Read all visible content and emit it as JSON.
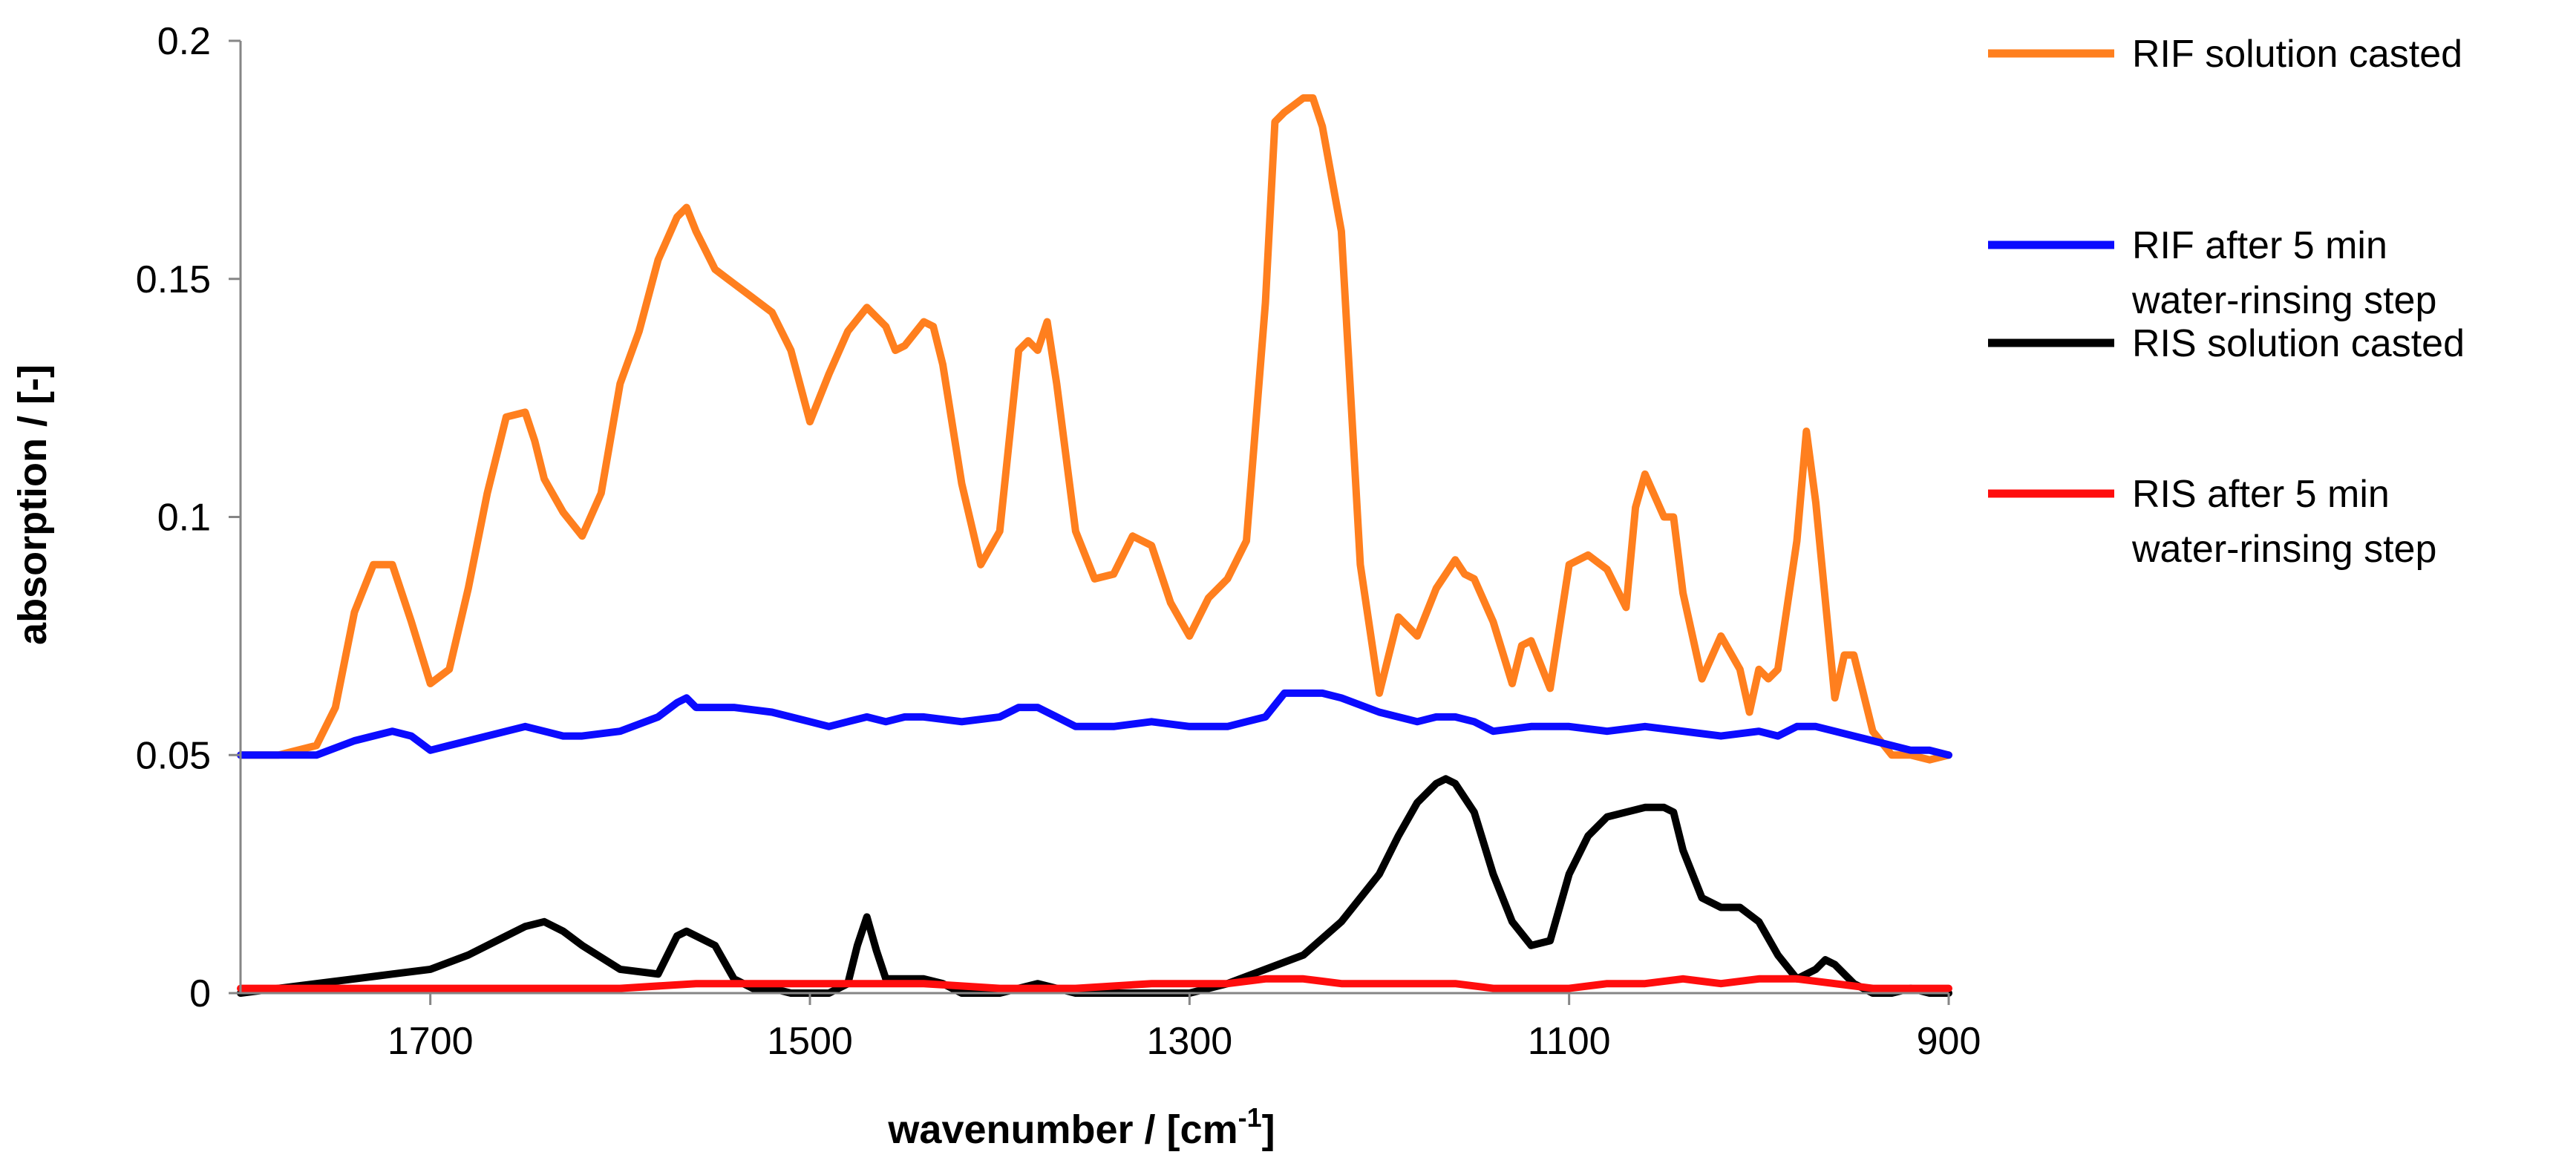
{
  "chart_data": {
    "type": "line",
    "title": "",
    "xlabel": "wavenumber / [cm",
    "xlabel_sup": "-1",
    "xlabel_end": "]",
    "ylabel": "absorption / [-]",
    "xlim": [
      1800,
      900
    ],
    "ylim": [
      0,
      0.2
    ],
    "x_ticks": [
      1700,
      1500,
      1300,
      1100,
      900
    ],
    "x_tick_labels": [
      "1700",
      "1500",
      "1300",
      "1100",
      "900"
    ],
    "y_ticks": [
      0,
      0.05,
      0.1,
      0.15,
      0.2
    ],
    "y_tick_labels": [
      "0",
      "0.05",
      "0.1",
      "0.15",
      "0.2"
    ],
    "grid": false,
    "legend_position": "right",
    "series": [
      {
        "name": "RIF solution casted",
        "legend_lines": [
          "RIF solution casted"
        ],
        "color": "#ff7f1e",
        "x": [
          1800,
          1780,
          1760,
          1750,
          1740,
          1730,
          1720,
          1710,
          1700,
          1690,
          1680,
          1670,
          1660,
          1650,
          1645,
          1640,
          1630,
          1620,
          1610,
          1600,
          1590,
          1580,
          1570,
          1565,
          1560,
          1550,
          1540,
          1530,
          1520,
          1510,
          1500,
          1490,
          1480,
          1470,
          1460,
          1455,
          1450,
          1440,
          1435,
          1430,
          1420,
          1410,
          1400,
          1390,
          1385,
          1380,
          1375,
          1370,
          1360,
          1350,
          1340,
          1330,
          1320,
          1310,
          1300,
          1290,
          1280,
          1270,
          1260,
          1255,
          1250,
          1240,
          1235,
          1230,
          1220,
          1210,
          1200,
          1190,
          1180,
          1170,
          1160,
          1155,
          1150,
          1140,
          1130,
          1125,
          1120,
          1110,
          1100,
          1090,
          1080,
          1070,
          1065,
          1060,
          1050,
          1045,
          1040,
          1030,
          1020,
          1010,
          1005,
          1000,
          995,
          990,
          980,
          975,
          970,
          960,
          955,
          950,
          940,
          930,
          920,
          910,
          900
        ],
        "y": [
          0.05,
          0.05,
          0.052,
          0.06,
          0.08,
          0.09,
          0.09,
          0.078,
          0.065,
          0.068,
          0.085,
          0.105,
          0.121,
          0.122,
          0.116,
          0.108,
          0.101,
          0.096,
          0.105,
          0.128,
          0.139,
          0.154,
          0.163,
          0.165,
          0.16,
          0.152,
          0.149,
          0.146,
          0.143,
          0.135,
          0.12,
          0.13,
          0.139,
          0.144,
          0.14,
          0.135,
          0.136,
          0.141,
          0.14,
          0.132,
          0.107,
          0.09,
          0.097,
          0.135,
          0.137,
          0.135,
          0.141,
          0.128,
          0.097,
          0.087,
          0.088,
          0.096,
          0.094,
          0.082,
          0.075,
          0.083,
          0.087,
          0.095,
          0.145,
          0.183,
          0.185,
          0.188,
          0.188,
          0.182,
          0.16,
          0.09,
          0.063,
          0.079,
          0.075,
          0.085,
          0.091,
          0.088,
          0.087,
          0.078,
          0.065,
          0.073,
          0.074,
          0.064,
          0.09,
          0.092,
          0.089,
          0.081,
          0.102,
          0.109,
          0.1,
          0.1,
          0.084,
          0.066,
          0.075,
          0.068,
          0.059,
          0.068,
          0.066,
          0.068,
          0.095,
          0.118,
          0.103,
          0.062,
          0.071,
          0.071,
          0.055,
          0.05,
          0.05,
          0.049,
          0.05
        ]
      },
      {
        "name": "RIF after 5 min water-rinsing step",
        "legend_lines": [
          "RIF after 5 min",
          "water-rinsing step"
        ],
        "color": "#0b0bff",
        "x": [
          1800,
          1780,
          1760,
          1740,
          1720,
          1710,
          1700,
          1690,
          1680,
          1660,
          1650,
          1640,
          1630,
          1620,
          1600,
          1580,
          1570,
          1565,
          1560,
          1540,
          1520,
          1500,
          1490,
          1480,
          1470,
          1460,
          1450,
          1440,
          1420,
          1400,
          1390,
          1380,
          1370,
          1360,
          1340,
          1320,
          1300,
          1280,
          1270,
          1260,
          1250,
          1240,
          1230,
          1220,
          1200,
          1180,
          1170,
          1160,
          1150,
          1140,
          1120,
          1100,
          1080,
          1060,
          1040,
          1020,
          1000,
          990,
          980,
          970,
          960,
          940,
          920,
          910,
          900
        ],
        "y": [
          0.05,
          0.05,
          0.05,
          0.053,
          0.055,
          0.054,
          0.051,
          0.052,
          0.053,
          0.055,
          0.056,
          0.055,
          0.054,
          0.054,
          0.055,
          0.058,
          0.061,
          0.062,
          0.06,
          0.06,
          0.059,
          0.057,
          0.056,
          0.057,
          0.058,
          0.057,
          0.058,
          0.058,
          0.057,
          0.058,
          0.06,
          0.06,
          0.058,
          0.056,
          0.056,
          0.057,
          0.056,
          0.056,
          0.057,
          0.058,
          0.063,
          0.063,
          0.063,
          0.062,
          0.059,
          0.057,
          0.058,
          0.058,
          0.057,
          0.055,
          0.056,
          0.056,
          0.055,
          0.056,
          0.055,
          0.054,
          0.055,
          0.054,
          0.056,
          0.056,
          0.055,
          0.053,
          0.051,
          0.051,
          0.05
        ]
      },
      {
        "name": "RIS solution casted",
        "legend_lines": [
          "RIS solution casted"
        ],
        "color": "#000000",
        "x": [
          1800,
          1780,
          1760,
          1740,
          1720,
          1700,
          1680,
          1660,
          1650,
          1640,
          1630,
          1620,
          1600,
          1580,
          1570,
          1565,
          1560,
          1550,
          1540,
          1530,
          1520,
          1510,
          1500,
          1490,
          1480,
          1475,
          1470,
          1465,
          1460,
          1450,
          1440,
          1430,
          1420,
          1400,
          1390,
          1380,
          1370,
          1360,
          1340,
          1320,
          1300,
          1280,
          1260,
          1240,
          1220,
          1200,
          1190,
          1180,
          1170,
          1165,
          1160,
          1150,
          1140,
          1130,
          1120,
          1110,
          1100,
          1090,
          1080,
          1070,
          1060,
          1050,
          1045,
          1040,
          1030,
          1020,
          1010,
          1000,
          990,
          980,
          970,
          965,
          960,
          950,
          940,
          930,
          920,
          910,
          900
        ],
        "y": [
          0,
          0.001,
          0.002,
          0.003,
          0.004,
          0.005,
          0.008,
          0.012,
          0.014,
          0.015,
          0.013,
          0.01,
          0.005,
          0.004,
          0.012,
          0.013,
          0.012,
          0.01,
          0.003,
          0.001,
          0.001,
          0,
          0,
          0,
          0.002,
          0.01,
          0.016,
          0.009,
          0.003,
          0.003,
          0.003,
          0.002,
          0,
          0,
          0.001,
          0.002,
          0.001,
          0,
          0,
          0,
          0,
          0.002,
          0.005,
          0.008,
          0.015,
          0.025,
          0.033,
          0.04,
          0.044,
          0.045,
          0.044,
          0.038,
          0.025,
          0.015,
          0.01,
          0.011,
          0.025,
          0.033,
          0.037,
          0.038,
          0.039,
          0.039,
          0.038,
          0.03,
          0.02,
          0.018,
          0.018,
          0.015,
          0.008,
          0.003,
          0.005,
          0.007,
          0.006,
          0.002,
          0,
          0,
          0.001,
          0,
          0
        ]
      },
      {
        "name": "RIS after 5 min water-rinsing step",
        "legend_lines": [
          "RIS after 5 min",
          "water-rinsing step"
        ],
        "color": "#ff0d0d",
        "x": [
          1800,
          1760,
          1720,
          1680,
          1640,
          1600,
          1560,
          1520,
          1480,
          1440,
          1400,
          1360,
          1320,
          1280,
          1260,
          1240,
          1220,
          1200,
          1180,
          1160,
          1140,
          1120,
          1100,
          1080,
          1060,
          1040,
          1020,
          1000,
          980,
          960,
          940,
          920,
          900
        ],
        "y": [
          0.001,
          0.001,
          0.001,
          0.001,
          0.001,
          0.001,
          0.002,
          0.002,
          0.002,
          0.002,
          0.001,
          0.001,
          0.002,
          0.002,
          0.003,
          0.003,
          0.002,
          0.002,
          0.002,
          0.002,
          0.001,
          0.001,
          0.001,
          0.002,
          0.002,
          0.003,
          0.002,
          0.003,
          0.003,
          0.002,
          0.001,
          0.001,
          0.001
        ]
      }
    ]
  }
}
